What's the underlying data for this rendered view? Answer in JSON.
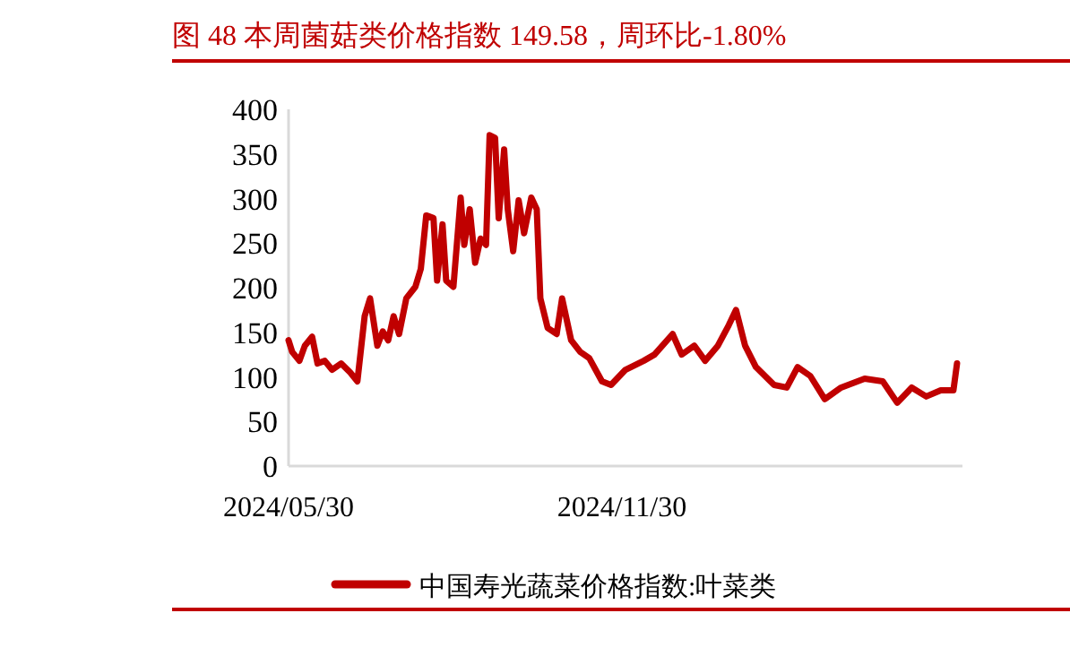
{
  "chart_data": {
    "type": "line",
    "title": "图 48 本周菌菇类价格指数 149.58，周环比-1.80%",
    "x": [
      "2024-05-30",
      "2024-06-01",
      "2024-06-05",
      "2024-06-08",
      "2024-06-12",
      "2024-06-15",
      "2024-06-19",
      "2024-06-23",
      "2024-06-28",
      "2024-07-03",
      "2024-07-07",
      "2024-07-11",
      "2024-07-14",
      "2024-07-18",
      "2024-07-21",
      "2024-07-24",
      "2024-07-27",
      "2024-07-30",
      "2024-08-03",
      "2024-08-08",
      "2024-08-11",
      "2024-08-14",
      "2024-08-18",
      "2024-08-20",
      "2024-08-23",
      "2024-08-25",
      "2024-08-29",
      "2024-09-02",
      "2024-09-04",
      "2024-09-07",
      "2024-09-10",
      "2024-09-13",
      "2024-09-16",
      "2024-09-18",
      "2024-09-21",
      "2024-09-23",
      "2024-09-26",
      "2024-09-28",
      "2024-10-01",
      "2024-10-04",
      "2024-10-07",
      "2024-10-11",
      "2024-10-14",
      "2024-10-16",
      "2024-10-20",
      "2024-10-25",
      "2024-10-28",
      "2024-11-02",
      "2024-11-07",
      "2024-11-12",
      "2024-11-19",
      "2024-11-24",
      "2024-12-02",
      "2024-12-12",
      "2024-12-18",
      "2024-12-28",
      "2025-01-02",
      "2025-01-09",
      "2025-01-15",
      "2025-01-22",
      "2025-01-28",
      "2025-02-01",
      "2025-02-06",
      "2025-02-12",
      "2025-02-22",
      "2025-03-01",
      "2025-03-07",
      "2025-03-14",
      "2025-03-22",
      "2025-03-31",
      "2025-04-13",
      "2025-04-23",
      "2025-05-01",
      "2025-05-09",
      "2025-05-17",
      "2025-05-25",
      "2025-06-01",
      "2025-06-03"
    ],
    "series": [
      {
        "name": "中国寿光蔬菜价格指数:叶菜类",
        "color": "#c00000",
        "values": [
          141,
          128,
          118,
          135,
          145,
          115,
          118,
          108,
          115,
          105,
          95,
          168,
          188,
          135,
          151,
          141,
          168,
          148,
          188,
          201,
          221,
          281,
          278,
          208,
          271,
          208,
          201,
          301,
          248,
          288,
          228,
          255,
          248,
          371,
          368,
          278,
          355,
          288,
          241,
          298,
          261,
          301,
          288,
          188,
          155,
          148,
          188,
          141,
          128,
          121,
          95,
          91,
          108,
          118,
          125,
          148,
          125,
          135,
          118,
          135,
          158,
          175,
          135,
          111,
          91,
          88,
          111,
          101,
          75,
          88,
          98,
          95,
          71,
          88,
          78,
          85,
          85,
          115
        ]
      }
    ],
    "xlim": [
      "2024-05-30",
      "2025-06-06"
    ],
    "xticks": [
      {
        "value": "2024-05-30",
        "label": "2024/05/30"
      },
      {
        "value": "2024-11-30",
        "label": "2024/11/30"
      }
    ],
    "ylim": [
      0,
      400
    ],
    "yticks": [
      0,
      50,
      100,
      150,
      200,
      250,
      300,
      350,
      400
    ],
    "legend": "bottom",
    "grid": false
  }
}
